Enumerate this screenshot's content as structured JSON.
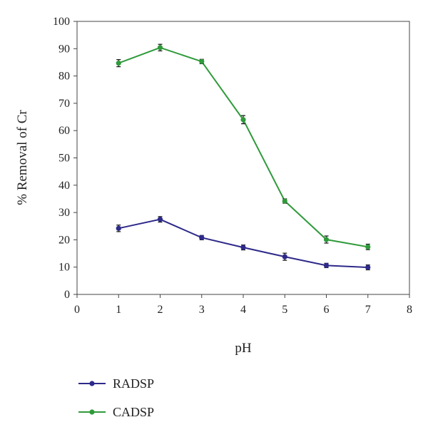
{
  "chart_data": {
    "type": "line",
    "xlabel": "pH",
    "ylabel": "% Removal of Cr",
    "xlim": [
      0,
      8
    ],
    "ylim": [
      0,
      100
    ],
    "xticks": [
      "0",
      "1",
      "2",
      "3",
      "4",
      "5",
      "6",
      "7",
      "8"
    ],
    "yticks": [
      "0",
      "10",
      "20",
      "30",
      "40",
      "50",
      "60",
      "70",
      "80",
      "90",
      "100"
    ],
    "grid": false,
    "legend": "bottom-left",
    "x": [
      1,
      2,
      3,
      4,
      5,
      6,
      7
    ],
    "series": [
      {
        "name": "RADSP",
        "color": "#2e2a8a",
        "values": [
          24.2,
          27.5,
          20.8,
          17.2,
          13.8,
          10.6,
          9.9
        ],
        "errors": [
          1.2,
          1.0,
          0.8,
          0.9,
          1.3,
          0.8,
          0.9
        ]
      },
      {
        "name": "CADSP",
        "color": "#2f9a3a",
        "values": [
          84.7,
          90.4,
          85.3,
          64.0,
          34.2,
          20.1,
          17.4
        ],
        "errors": [
          1.3,
          1.2,
          0.8,
          1.5,
          0.8,
          1.3,
          1.0
        ]
      }
    ]
  }
}
